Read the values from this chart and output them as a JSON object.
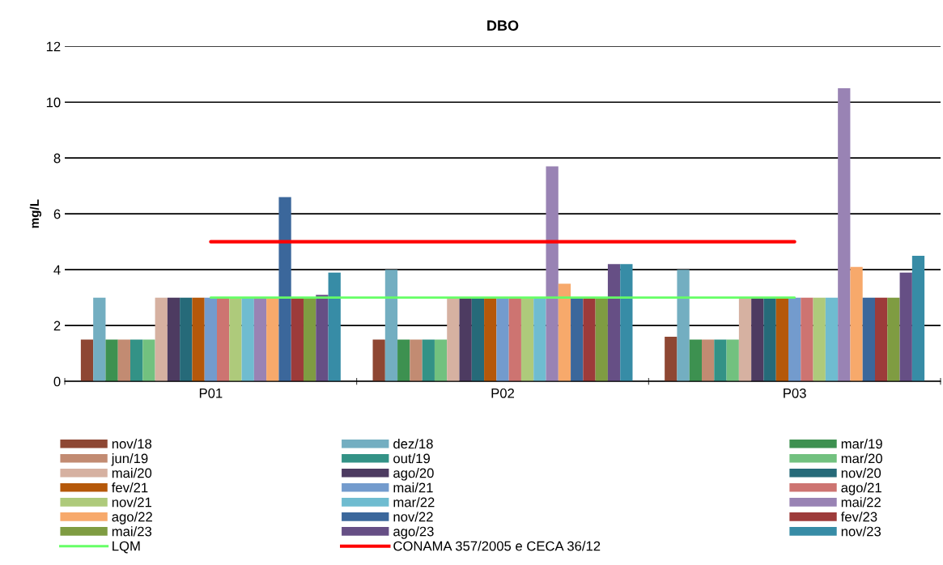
{
  "chart_data": {
    "type": "bar",
    "title": "DBO",
    "ylabel": "mg/L",
    "categories": [
      "P01",
      "P02",
      "P03"
    ],
    "ylim": [
      0,
      12
    ],
    "yticks": [
      0,
      2,
      4,
      6,
      8,
      10,
      12
    ],
    "grid": "y",
    "legend": "bottom",
    "series": [
      {
        "name": "nov/18",
        "color": "#8e4733",
        "values": [
          1.5,
          1.5,
          1.6
        ]
      },
      {
        "name": "dez/18",
        "color": "#73aec1",
        "values": [
          3,
          4,
          4
        ]
      },
      {
        "name": "mar/19",
        "color": "#3d9150",
        "values": [
          1.5,
          1.5,
          1.5
        ]
      },
      {
        "name": "jun/19",
        "color": "#c28b72",
        "values": [
          1.5,
          1.5,
          1.5
        ]
      },
      {
        "name": "out/19",
        "color": "#339286",
        "values": [
          1.5,
          1.5,
          1.5
        ]
      },
      {
        "name": "mar/20",
        "color": "#72c17f",
        "values": [
          1.5,
          1.5,
          1.5
        ]
      },
      {
        "name": "mai/20",
        "color": "#d6b1a1",
        "values": [
          3,
          3,
          3
        ]
      },
      {
        "name": "ago/20",
        "color": "#4d3b61",
        "values": [
          3,
          3,
          3
        ]
      },
      {
        "name": "nov/20",
        "color": "#266a79",
        "values": [
          3,
          3,
          3
        ]
      },
      {
        "name": "fev/21",
        "color": "#b5580a",
        "values": [
          3,
          3,
          3
        ]
      },
      {
        "name": "mai/21",
        "color": "#739bcd",
        "values": [
          3,
          3,
          3
        ]
      },
      {
        "name": "ago/21",
        "color": "#cd7471",
        "values": [
          3,
          3,
          3
        ]
      },
      {
        "name": "nov/21",
        "color": "#aeca7b",
        "values": [
          3,
          3,
          3
        ]
      },
      {
        "name": "mar/22",
        "color": "#6fbcd0",
        "values": [
          3,
          3,
          3
        ]
      },
      {
        "name": "mai/22",
        "color": "#9983b4",
        "values": [
          3,
          7.7,
          10.5
        ]
      },
      {
        "name": "ago/22",
        "color": "#f7a96b",
        "values": [
          3,
          3.5,
          4.1
        ]
      },
      {
        "name": "nov/22",
        "color": "#3b679b",
        "values": [
          6.6,
          3,
          3
        ]
      },
      {
        "name": "fev/23",
        "color": "#9d3b3a",
        "values": [
          3,
          3,
          3
        ]
      },
      {
        "name": "mai/23",
        "color": "#7f9c42",
        "values": [
          3,
          3,
          3
        ]
      },
      {
        "name": "ago/23",
        "color": "#664f85",
        "values": [
          3.1,
          4.2,
          3.9
        ]
      },
      {
        "name": "nov/23",
        "color": "#378ca6",
        "values": [
          3.9,
          4.2,
          4.5
        ]
      },
      {
        "name": "LQM",
        "type": "line",
        "color": "#66ff66",
        "values": [
          3,
          3,
          3
        ]
      },
      {
        "name": "CONAMA 357/2005 e CECA 36/12",
        "type": "line",
        "color": "#ff0000",
        "values": [
          5,
          5,
          5
        ]
      }
    ]
  }
}
